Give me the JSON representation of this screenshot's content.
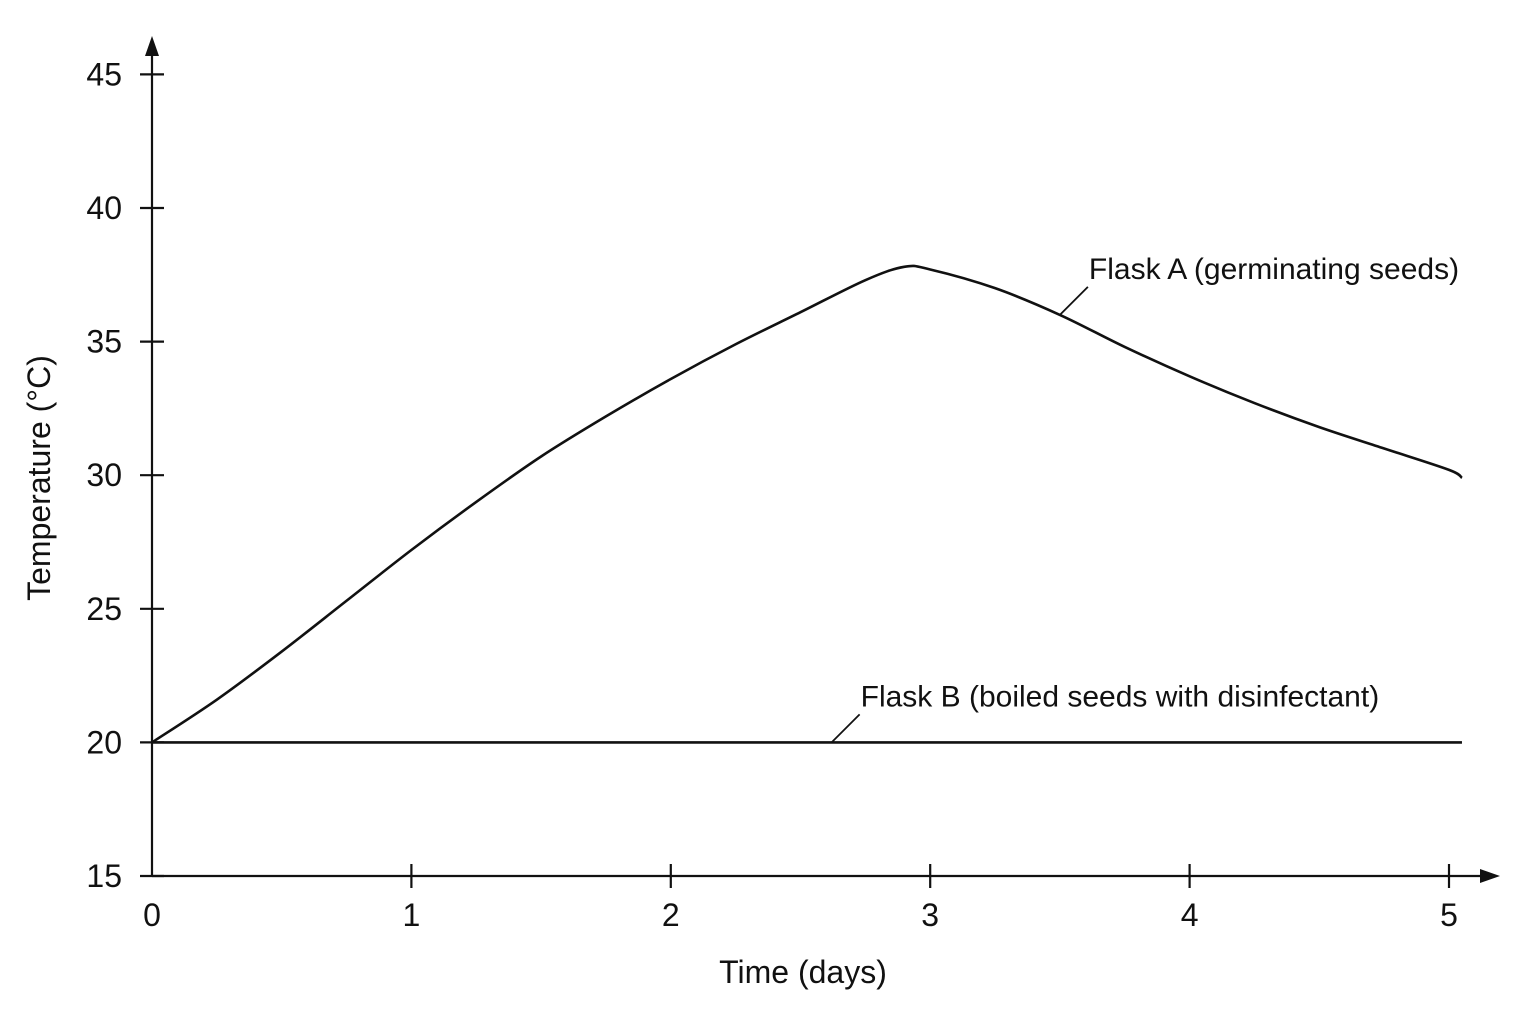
{
  "chart_data": {
    "type": "line",
    "xlabel": "Time (days)",
    "ylabel": "Temperature (°C)",
    "xlim": [
      0,
      5.1
    ],
    "ylim": [
      15,
      46
    ],
    "x_ticks": [
      0,
      1,
      2,
      3,
      4,
      5
    ],
    "y_ticks": [
      15,
      20,
      25,
      30,
      35,
      40,
      45
    ],
    "grid": false,
    "legend": "none",
    "series": [
      {
        "name": "Flask A (germinating seeds)",
        "x": [
          0,
          0.25,
          0.5,
          0.75,
          1,
          1.25,
          1.5,
          1.75,
          2,
          2.25,
          2.5,
          2.75,
          2.9,
          3,
          3.25,
          3.5,
          3.75,
          4,
          4.25,
          4.5,
          4.75,
          5,
          5.05
        ],
        "y": [
          20,
          21.6,
          23.4,
          25.3,
          27.2,
          29.0,
          30.7,
          32.2,
          33.6,
          34.9,
          36.1,
          37.3,
          37.8,
          37.7,
          37.0,
          36.0,
          34.8,
          33.7,
          32.7,
          31.8,
          31.0,
          30.2,
          29.9
        ]
      },
      {
        "name": "Flask B (boiled seeds with disinfectant)",
        "x": [
          0,
          5.05
        ],
        "y": [
          20,
          20
        ]
      }
    ],
    "annotations": [
      {
        "series": 0,
        "text": "Flask A (germinating seeds)",
        "anchor_x": 3.5,
        "anchor_y": 36.0
      },
      {
        "series": 1,
        "text": "Flask B (boiled seeds with disinfectant)",
        "anchor_x": 2.62,
        "anchor_y": 20
      }
    ]
  }
}
